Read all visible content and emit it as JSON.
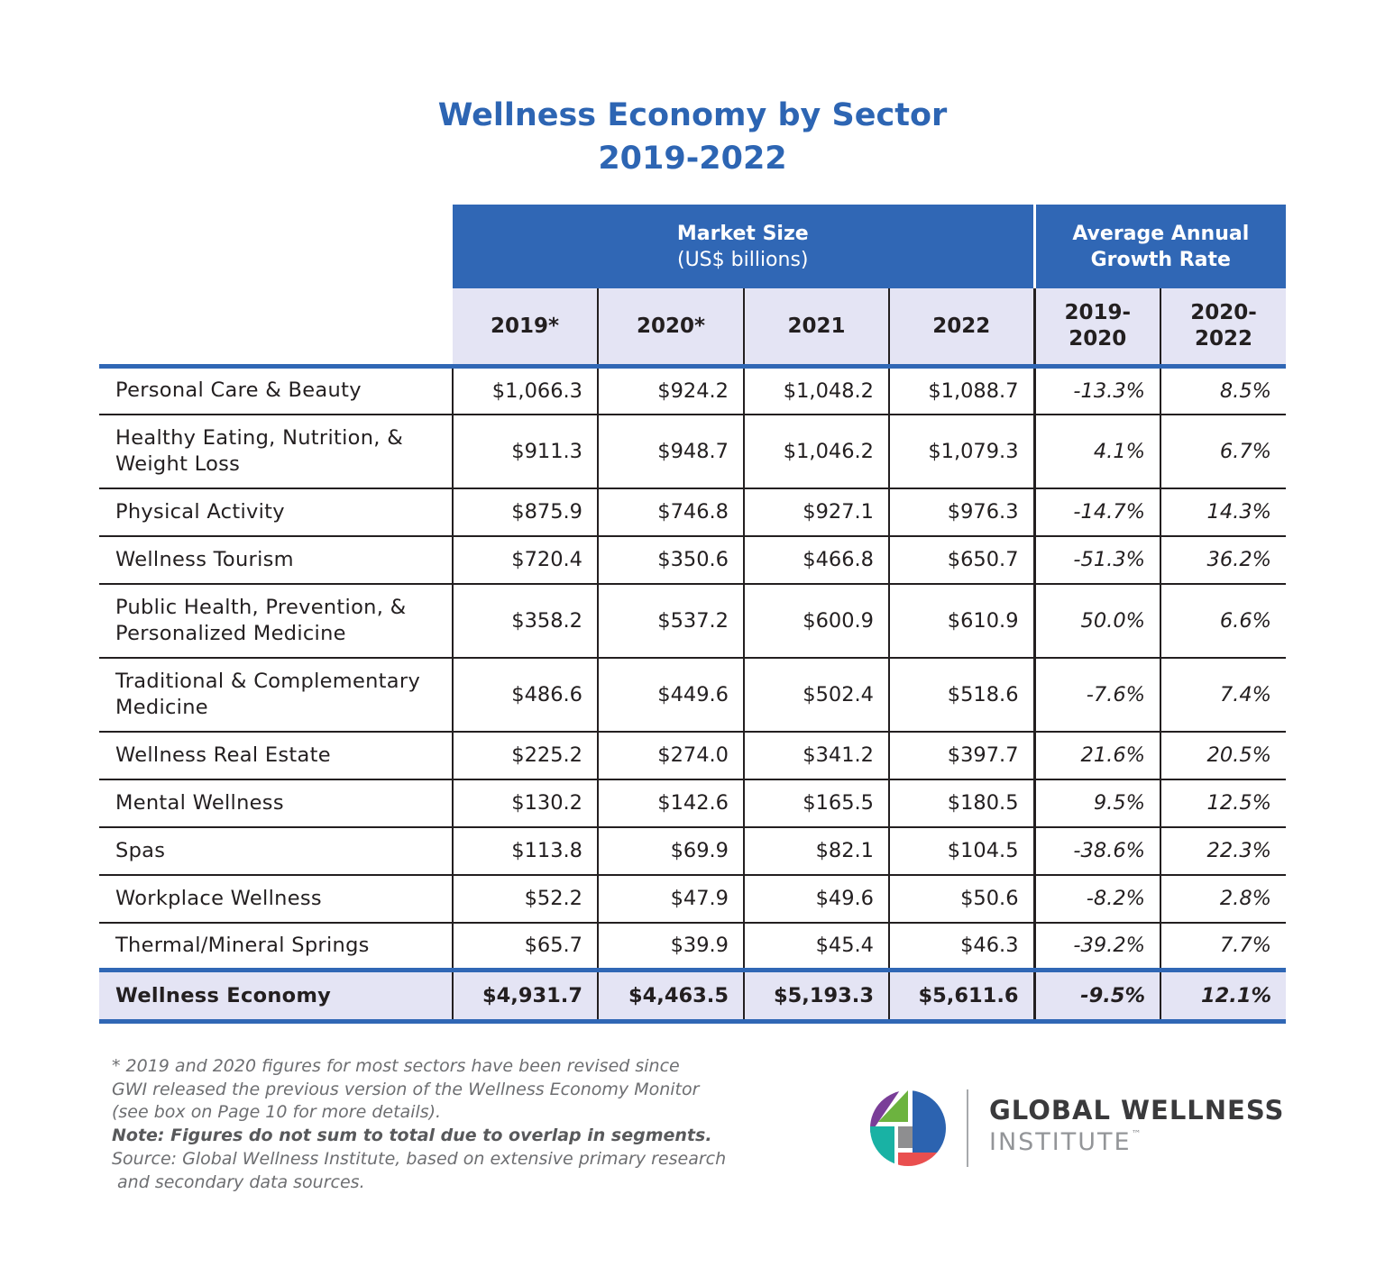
{
  "title": {
    "line1": "Wellness Economy by Sector",
    "line2": "2019-2022"
  },
  "chart_data": {
    "type": "table",
    "title": "Wellness Economy by Sector 2019-2022",
    "group_headers": [
      {
        "label": "Market Size",
        "sub": "(US$ billions)"
      },
      {
        "label": "Average Annual",
        "sub": "Growth Rate"
      }
    ],
    "columns": [
      {
        "l1": "2019*",
        "l2": ""
      },
      {
        "l1": "2020*",
        "l2": ""
      },
      {
        "l1": "2021",
        "l2": ""
      },
      {
        "l1": "2022",
        "l2": ""
      },
      {
        "l1": "2019-",
        "l2": "2020"
      },
      {
        "l1": "2020-",
        "l2": "2022"
      }
    ],
    "rows": [
      {
        "sector": "Personal Care & Beauty",
        "values": [
          "$1,066.3",
          "$924.2",
          "$1,048.2",
          "$1,088.7",
          "-13.3%",
          "8.5%"
        ],
        "tall": false
      },
      {
        "sector": "Healthy Eating, Nutrition, & Weight Loss",
        "values": [
          "$911.3",
          "$948.7",
          "$1,046.2",
          "$1,079.3",
          "4.1%",
          "6.7%"
        ],
        "tall": true
      },
      {
        "sector": "Physical Activity",
        "values": [
          "$875.9",
          "$746.8",
          "$927.1",
          "$976.3",
          "-14.7%",
          "14.3%"
        ],
        "tall": false
      },
      {
        "sector": "Wellness Tourism",
        "values": [
          "$720.4",
          "$350.6",
          "$466.8",
          "$650.7",
          "-51.3%",
          "36.2%"
        ],
        "tall": false
      },
      {
        "sector": "Public Health, Prevention, & Personalized Medicine",
        "values": [
          "$358.2",
          "$537.2",
          "$600.9",
          "$610.9",
          "50.0%",
          "6.6%"
        ],
        "tall": true
      },
      {
        "sector": "Traditional & Complementary Medicine",
        "values": [
          "$486.6",
          "$449.6",
          "$502.4",
          "$518.6",
          "-7.6%",
          "7.4%"
        ],
        "tall": true
      },
      {
        "sector": "Wellness Real Estate",
        "values": [
          "$225.2",
          "$274.0",
          "$341.2",
          "$397.7",
          "21.6%",
          "20.5%"
        ],
        "tall": false
      },
      {
        "sector": "Mental Wellness",
        "values": [
          "$130.2",
          "$142.6",
          "$165.5",
          "$180.5",
          "9.5%",
          "12.5%"
        ],
        "tall": false
      },
      {
        "sector": "Spas",
        "values": [
          "$113.8",
          "$69.9",
          "$82.1",
          "$104.5",
          "-38.6%",
          "22.3%"
        ],
        "tall": false
      },
      {
        "sector": "Workplace Wellness",
        "values": [
          "$52.2",
          "$47.9",
          "$49.6",
          "$50.6",
          "-8.2%",
          "2.8%"
        ],
        "tall": false
      },
      {
        "sector": "Thermal/Mineral Springs",
        "values": [
          "$65.7",
          "$39.9",
          "$45.4",
          "$46.3",
          "-39.2%",
          "7.7%"
        ],
        "tall": false
      }
    ],
    "total": {
      "sector": "Wellness Economy",
      "values": [
        "$4,931.7",
        "$4,463.5",
        "$5,193.3",
        "$5,611.6",
        "-9.5%",
        "12.1%"
      ]
    }
  },
  "notes": {
    "line1": "* 2019 and 2020 figures for most sectors have been revised since",
    "line2": "GWI released the previous version of the Wellness Economy Monitor",
    "line3": "(see box on Page 10 for more details).",
    "line4": "Note: Figures do not sum to total due to overlap in segments.",
    "line5": "Source: Global Wellness Institute, based on extensive primary research",
    "line6": " and secondary data sources."
  },
  "logo": {
    "line1": "GLOBAL WELLNESS",
    "line2": "INSTITUTE",
    "tm": "™"
  },
  "colors": {
    "accent": "#3067b5",
    "header_fill": "#e4e4f4",
    "title": "#2d65b3"
  }
}
